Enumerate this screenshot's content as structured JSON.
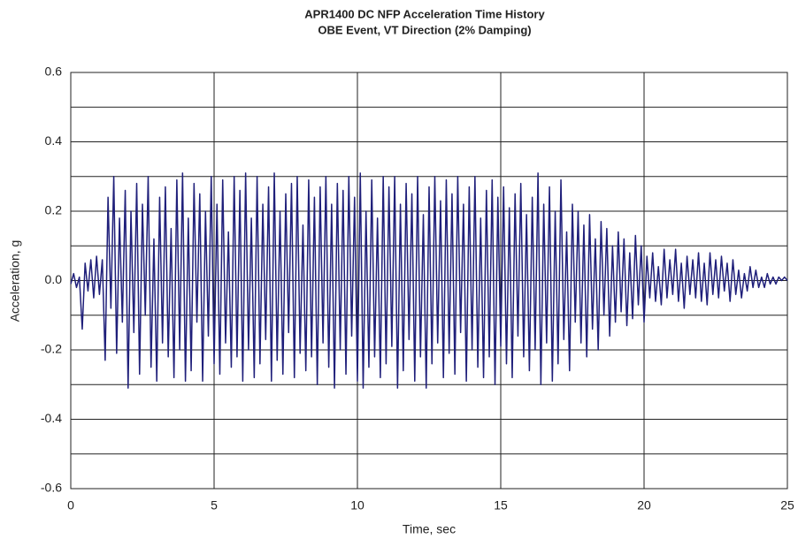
{
  "chart_data": {
    "type": "line",
    "title": "APR1400 DC NFP Acceleration Time History",
    "subtitle": "OBE Event, VT Direction (2% Damping)",
    "x_label": "Time, sec",
    "y_label": "Acceleration, g",
    "color": "#1f1f7a",
    "grid": true,
    "xlim": [
      0,
      25
    ],
    "xticks": [
      0,
      5,
      10,
      15,
      20,
      25
    ],
    "ylim": [
      -0.6,
      0.6
    ],
    "yticks": [
      -0.6,
      -0.4,
      -0.2,
      {
        "value": 0,
        "label": "0.0"
      },
      0.2,
      0.4,
      0.6
    ],
    "y_minor_ticks": [
      -0.5,
      -0.3,
      -0.1,
      0.1,
      0.3,
      0.5
    ],
    "x": [
      0,
      0.1,
      0.2,
      0.3,
      0.4,
      0.5,
      0.6,
      0.7,
      0.8,
      0.9,
      1,
      1.1,
      1.2,
      1.3,
      1.4,
      1.5,
      1.6,
      1.7,
      1.8,
      1.9,
      2,
      2.1,
      2.2,
      2.3,
      2.4,
      2.5,
      2.6,
      2.7,
      2.8,
      2.9,
      3,
      3.1,
      3.2,
      3.3,
      3.4,
      3.5,
      3.6,
      3.7,
      3.8,
      3.9,
      4,
      4.1,
      4.2,
      4.3,
      4.4,
      4.5,
      4.6,
      4.7,
      4.8,
      4.9,
      5,
      5.1,
      5.2,
      5.3,
      5.4,
      5.5,
      5.6,
      5.7,
      5.8,
      5.9,
      6,
      6.1,
      6.2,
      6.3,
      6.4,
      6.5,
      6.6,
      6.7,
      6.8,
      6.9,
      7,
      7.1,
      7.2,
      7.3,
      7.4,
      7.5,
      7.6,
      7.7,
      7.8,
      7.9,
      8,
      8.1,
      8.2,
      8.3,
      8.4,
      8.5,
      8.6,
      8.7,
      8.8,
      8.9,
      9,
      9.1,
      9.2,
      9.3,
      9.4,
      9.5,
      9.6,
      9.7,
      9.8,
      9.9,
      10,
      10.1,
      10.2,
      10.3,
      10.4,
      10.5,
      10.6,
      10.7,
      10.8,
      10.9,
      11,
      11.1,
      11.2,
      11.3,
      11.4,
      11.5,
      11.6,
      11.7,
      11.8,
      11.9,
      12,
      12.1,
      12.2,
      12.3,
      12.4,
      12.5,
      12.6,
      12.7,
      12.8,
      12.9,
      13,
      13.1,
      13.2,
      13.3,
      13.4,
      13.5,
      13.6,
      13.7,
      13.8,
      13.9,
      14,
      14.1,
      14.2,
      14.3,
      14.4,
      14.5,
      14.6,
      14.7,
      14.8,
      14.9,
      15,
      15.1,
      15.2,
      15.3,
      15.4,
      15.5,
      15.6,
      15.7,
      15.8,
      15.9,
      16,
      16.1,
      16.2,
      16.3,
      16.4,
      16.5,
      16.6,
      16.7,
      16.8,
      16.9,
      17,
      17.1,
      17.2,
      17.3,
      17.4,
      17.5,
      17.6,
      17.7,
      17.8,
      17.9,
      18,
      18.1,
      18.2,
      18.3,
      18.4,
      18.5,
      18.6,
      18.7,
      18.8,
      18.9,
      19,
      19.1,
      19.2,
      19.3,
      19.4,
      19.5,
      19.6,
      19.7,
      19.8,
      19.9,
      20,
      20.1,
      20.2,
      20.3,
      20.4,
      20.5,
      20.6,
      20.7,
      20.8,
      20.9,
      21,
      21.1,
      21.2,
      21.3,
      21.4,
      21.5,
      21.6,
      21.7,
      21.8,
      21.9,
      22,
      22.1,
      22.2,
      22.3,
      22.4,
      22.5,
      22.6,
      22.7,
      22.8,
      22.9,
      23,
      23.1,
      23.2,
      23.3,
      23.4,
      23.5,
      23.6,
      23.7,
      23.8,
      23.9,
      24,
      24.1,
      24.2,
      24.3,
      24.4,
      24.5,
      24.6,
      24.7,
      24.8,
      24.9,
      25
    ],
    "values": [
      -0.01,
      0.02,
      -0.02,
      0.01,
      -0.14,
      0.05,
      -0.03,
      0.06,
      -0.05,
      0.07,
      -0.04,
      0.06,
      -0.23,
      0.24,
      -0.08,
      0.3,
      -0.21,
      0.18,
      -0.12,
      0.26,
      -0.31,
      0.2,
      -0.15,
      0.28,
      -0.27,
      0.22,
      -0.1,
      0.3,
      -0.25,
      0.12,
      -0.29,
      0.24,
      -0.18,
      0.27,
      -0.22,
      0.15,
      -0.28,
      0.29,
      -0.2,
      0.31,
      -0.29,
      0.18,
      -0.26,
      0.28,
      -0.12,
      0.25,
      -0.29,
      0.2,
      -0.16,
      0.3,
      -0.24,
      0.22,
      -0.27,
      0.29,
      -0.18,
      0.14,
      -0.25,
      0.3,
      -0.22,
      0.26,
      -0.29,
      0.31,
      -0.2,
      0.18,
      -0.28,
      0.3,
      -0.24,
      0.22,
      -0.17,
      0.27,
      -0.29,
      0.31,
      -0.23,
      0.2,
      -0.27,
      0.25,
      -0.15,
      0.28,
      -0.28,
      0.3,
      -0.21,
      0.16,
      -0.26,
      0.29,
      -0.22,
      0.24,
      -0.3,
      0.27,
      -0.18,
      0.3,
      -0.25,
      0.22,
      -0.31,
      0.28,
      -0.2,
      0.26,
      -0.27,
      0.3,
      -0.16,
      0.24,
      -0.29,
      0.31,
      -0.31,
      0.2,
      -0.25,
      0.29,
      -0.22,
      0.18,
      -0.28,
      0.3,
      -0.24,
      0.27,
      -0.19,
      0.3,
      -0.31,
      0.22,
      -0.26,
      0.28,
      -0.17,
      0.25,
      -0.29,
      0.3,
      -0.22,
      0.19,
      -0.31,
      0.27,
      -0.24,
      0.3,
      -0.18,
      0.23,
      -0.28,
      0.29,
      -0.21,
      0.25,
      -0.27,
      0.3,
      -0.15,
      0.22,
      -0.29,
      0.27,
      -0.2,
      0.3,
      -0.25,
      0.18,
      -0.28,
      0.26,
      -0.22,
      0.29,
      -0.3,
      0.24,
      -0.19,
      0.27,
      -0.24,
      0.21,
      -0.28,
      0.25,
      -0.16,
      0.28,
      -0.22,
      0.19,
      -0.26,
      0.24,
      -0.2,
      0.31,
      -0.3,
      0.22,
      -0.18,
      0.27,
      -0.29,
      0.2,
      -0.24,
      0.29,
      -0.17,
      0.14,
      -0.26,
      0.22,
      -0.12,
      0.2,
      -0.18,
      0.16,
      -0.22,
      0.19,
      -0.14,
      0.12,
      -0.2,
      0.17,
      -0.1,
      0.15,
      -0.16,
      0.1,
      -0.12,
      0.14,
      -0.09,
      0.12,
      -0.13,
      0.08,
      -0.11,
      0.13,
      -0.07,
      0.1,
      -0.12,
      0.07,
      -0.05,
      0.08,
      -0.06,
      0.04,
      -0.07,
      0.09,
      -0.05,
      0.06,
      -0.04,
      0.09,
      -0.06,
      0.05,
      -0.08,
      0.07,
      -0.04,
      0.06,
      -0.05,
      0.08,
      -0.06,
      0.05,
      -0.07,
      0.08,
      -0.04,
      0.06,
      -0.05,
      0.07,
      -0.03,
      0.05,
      -0.06,
      0.06,
      -0.04,
      0.03,
      -0.05,
      0.02,
      -0.03,
      0.04,
      -0.02,
      0.03,
      -0.02,
      0.01,
      -0.02,
      0.02,
      -0.01,
      0.01,
      -0.01,
      0.01,
      0,
      0.01,
      0
    ]
  }
}
